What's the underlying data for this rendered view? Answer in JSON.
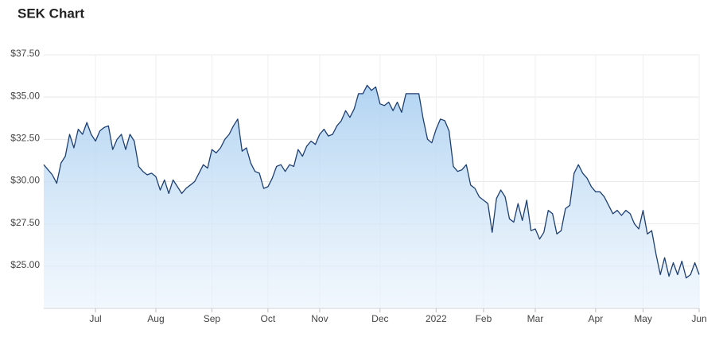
{
  "chart_data": {
    "type": "area",
    "title": "SEK Chart",
    "values": [
      31.0,
      30.7,
      30.4,
      29.9,
      31.1,
      31.5,
      32.8,
      32.0,
      33.1,
      32.8,
      33.5,
      32.8,
      32.4,
      33.0,
      33.2,
      33.3,
      31.9,
      32.5,
      32.8,
      31.9,
      32.8,
      32.4,
      30.9,
      30.6,
      30.4,
      30.5,
      30.3,
      29.5,
      30.1,
      29.3,
      30.1,
      29.7,
      29.3,
      29.6,
      29.8,
      30.0,
      30.5,
      31.0,
      30.8,
      31.9,
      31.7,
      32.0,
      32.5,
      32.8,
      33.3,
      33.7,
      31.8,
      32.0,
      31.1,
      30.6,
      30.5,
      29.6,
      29.7,
      30.2,
      30.9,
      31.0,
      30.6,
      31.0,
      30.9,
      31.9,
      31.5,
      32.1,
      32.4,
      32.2,
      32.8,
      33.1,
      32.7,
      32.8,
      33.3,
      33.6,
      34.2,
      33.8,
      34.3,
      35.2,
      35.2,
      35.7,
      35.4,
      35.6,
      34.6,
      34.5,
      34.7,
      34.2,
      34.7,
      34.1,
      35.2,
      35.2,
      35.2,
      35.2,
      33.7,
      32.5,
      32.3,
      33.1,
      33.7,
      33.6,
      33.0,
      30.9,
      30.6,
      30.7,
      31.0,
      29.8,
      29.6,
      29.1,
      28.9,
      28.7,
      27.0,
      29.0,
      29.5,
      29.1,
      27.8,
      27.6,
      28.7,
      27.7,
      28.9,
      27.1,
      27.2,
      26.6,
      27.0,
      28.3,
      28.1,
      26.9,
      27.1,
      28.4,
      28.6,
      30.5,
      31.0,
      30.5,
      30.2,
      29.7,
      29.4,
      29.4,
      29.1,
      28.6,
      28.1,
      28.3,
      28.0,
      28.3,
      28.1,
      27.5,
      27.2,
      28.3,
      26.9,
      27.1,
      25.7,
      24.5,
      25.5,
      24.4,
      25.2,
      24.5,
      25.3,
      24.3,
      24.5,
      25.2,
      24.5
    ],
    "color": "#1d3f72",
    "xlim": [
      0,
      152
    ],
    "xticks": [
      {
        "value": 12,
        "label": "Jul"
      },
      {
        "value": 26,
        "label": "Aug"
      },
      {
        "value": 39,
        "label": "Sep"
      },
      {
        "value": 52,
        "label": "Oct"
      },
      {
        "value": 64,
        "label": "Nov"
      },
      {
        "value": 78,
        "label": "Dec"
      },
      {
        "value": 91,
        "label": "2022"
      },
      {
        "value": 102,
        "label": "Feb"
      },
      {
        "value": 114,
        "label": "Mar"
      },
      {
        "value": 128,
        "label": "Apr"
      },
      {
        "value": 139,
        "label": "May"
      },
      {
        "value": 152,
        "label": "Jun"
      }
    ],
    "ylim": [
      22.5,
      37.5
    ],
    "yticks": [
      {
        "value": 25,
        "label": "$25.00"
      },
      {
        "value": 27.5,
        "label": "$27.50"
      },
      {
        "value": 30,
        "label": "$30.00"
      },
      {
        "value": 32.5,
        "label": "$32.50"
      },
      {
        "value": 35,
        "label": "$35.00"
      },
      {
        "value": 37.5,
        "label": "$37.50"
      }
    ],
    "grid": true
  }
}
